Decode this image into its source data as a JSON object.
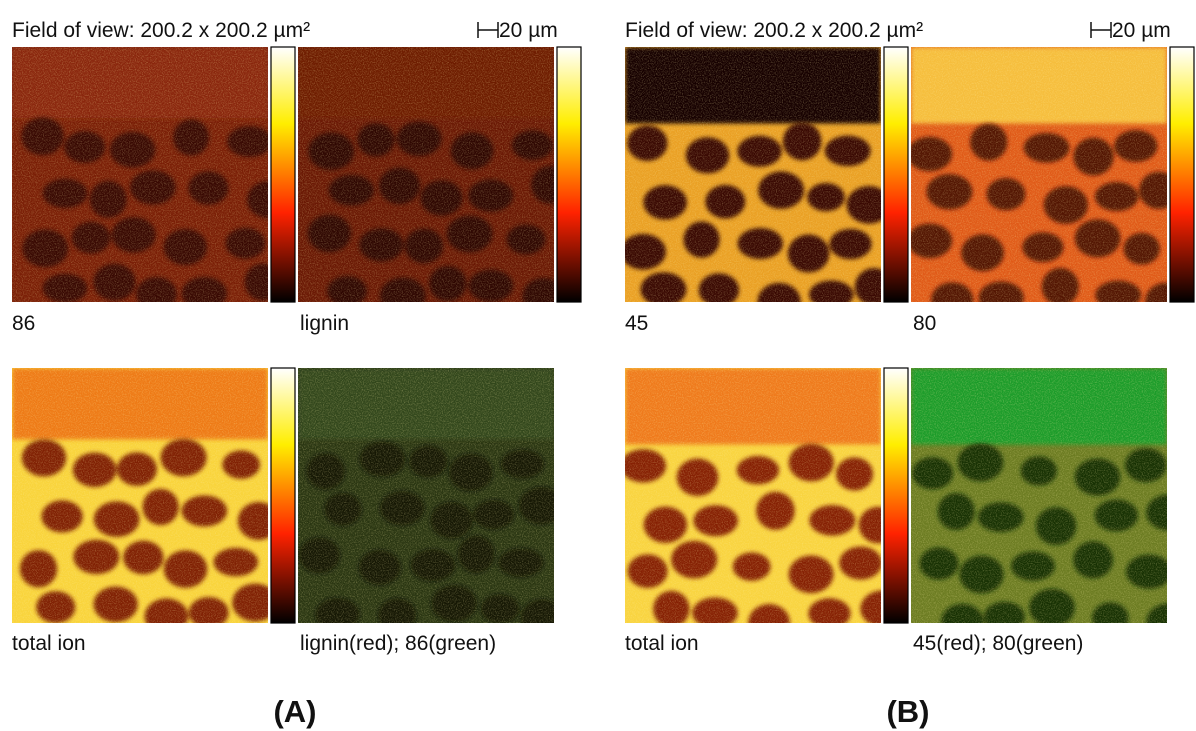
{
  "panels": [
    {
      "header": {
        "field_of_view": "Field of view: 200.2 x 200.2 µm²",
        "scale_bar": "20 µm"
      },
      "images": [
        {
          "label": "86"
        },
        {
          "label": "lignin"
        },
        {
          "label": "total ion"
        },
        {
          "label": "lignin(red); 86(green)"
        }
      ],
      "caption": "(A)"
    },
    {
      "header": {
        "field_of_view": "Field of view: 200.2 x 200.2 µm²",
        "scale_bar": "20 µm"
      },
      "images": [
        {
          "label": "45"
        },
        {
          "label": "80"
        },
        {
          "label": "total ion"
        },
        {
          "label": "45(red); 80(green)"
        }
      ],
      "caption": "(B)"
    }
  ]
}
